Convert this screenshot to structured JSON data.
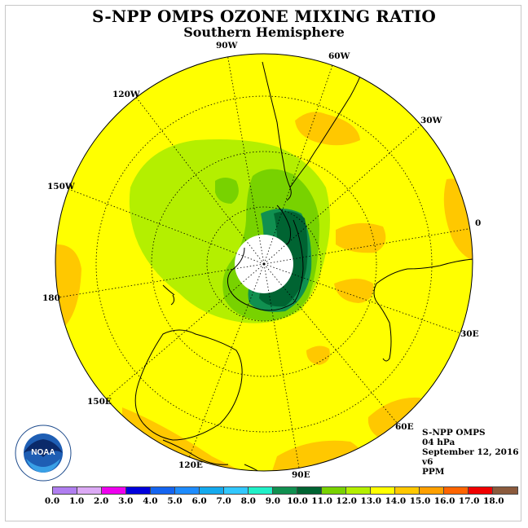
{
  "title": "S-NPP OMPS OZONE MIXING RATIO",
  "subtitle": "Southern Hemisphere",
  "longitude_labels": {
    "90W": "90W",
    "60W": "60W",
    "30W": "30W",
    "0": "0",
    "30E": "30E",
    "60E": "60E",
    "90E": "90E",
    "120E": "120E",
    "150E": "150E",
    "180": "180",
    "150W": "150W",
    "120W": "120W"
  },
  "info": {
    "instrument": "S-NPP OMPS",
    "level": "04 hPa",
    "date": "September 12, 2016",
    "version": "v6",
    "units": "PPM"
  },
  "legend": {
    "ticks": [
      "0.0",
      "1.0",
      "2.0",
      "3.0",
      "4.0",
      "5.0",
      "6.0",
      "7.0",
      "8.0",
      "9.0",
      "10.0",
      "11.0",
      "12.0",
      "13.0",
      "14.0",
      "15.0",
      "16.0",
      "17.0",
      "18.0"
    ],
    "colors": [
      "#b07ef0",
      "#dcaaf5",
      "#ee00ee",
      "#0000dc",
      "#1464f0",
      "#1e8cff",
      "#14aaee",
      "#32c8ff",
      "#20f0c8",
      "#109050",
      "#006432",
      "#78d200",
      "#b4ef00",
      "#ffff00",
      "#ffc800",
      "#ffa000",
      "#ff6400",
      "#f00000",
      "#8b5a3c"
    ]
  },
  "logo": {
    "name": "NOAA",
    "text": "NOAA"
  },
  "colors": {
    "background_field": "#ffff00",
    "ocean_land_outline": "#000000",
    "pole_mask": "#ffffff"
  }
}
